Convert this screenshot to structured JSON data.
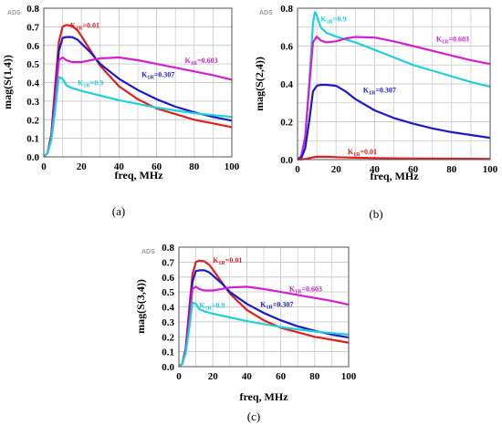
{
  "chart_data": [
    {
      "type": "line",
      "id": "a",
      "caption": "(a)",
      "watermark": "ADS",
      "xlabel": "freq, MHz",
      "ylabel": "mag(S(1,4))",
      "xlim": [
        0,
        100
      ],
      "ylim": [
        0,
        0.8
      ],
      "xticks": [
        0,
        20,
        40,
        60,
        80,
        100
      ],
      "yticks": [
        0.0,
        0.1,
        0.2,
        0.3,
        0.4,
        0.5,
        0.6,
        0.7,
        0.8
      ],
      "ytick_labels": [
        "0.0",
        "0.1",
        "0.2",
        "0.3",
        "0.4",
        "0.5",
        "0.6",
        "0.7",
        "0.8"
      ],
      "grid": true,
      "series": [
        {
          "name": "K1R=0.01",
          "color": "#e02020",
          "label_sub": "1R",
          "label_rest": "=0.01",
          "label_at": [
            14,
            0.695
          ],
          "x": [
            0,
            2,
            4,
            6,
            8,
            10,
            12,
            15,
            18,
            20,
            25,
            30,
            40,
            50,
            60,
            70,
            80,
            90,
            100
          ],
          "y": [
            0,
            0.02,
            0.12,
            0.38,
            0.62,
            0.7,
            0.71,
            0.705,
            0.68,
            0.65,
            0.57,
            0.49,
            0.38,
            0.31,
            0.26,
            0.23,
            0.2,
            0.18,
            0.16
          ]
        },
        {
          "name": "K1R=0.307",
          "color": "#1a1ac8",
          "label_sub": "1R",
          "label_rest": "=0.307",
          "label_at": [
            52,
            0.43
          ],
          "x": [
            0,
            2,
            4,
            6,
            8,
            10,
            12,
            15,
            18,
            20,
            25,
            30,
            40,
            50,
            60,
            70,
            80,
            90,
            100
          ],
          "y": [
            0,
            0.02,
            0.11,
            0.33,
            0.57,
            0.64,
            0.645,
            0.645,
            0.63,
            0.61,
            0.56,
            0.5,
            0.42,
            0.36,
            0.31,
            0.27,
            0.24,
            0.215,
            0.195
          ]
        },
        {
          "name": "K1R=0.603",
          "color": "#d020d0",
          "label_sub": "1R",
          "label_rest": "=0.603",
          "label_at": [
            75,
            0.505
          ],
          "x": [
            0,
            2,
            4,
            6,
            8,
            10,
            12,
            15,
            20,
            25,
            30,
            40,
            50,
            60,
            70,
            80,
            90,
            100
          ],
          "y": [
            0,
            0.02,
            0.1,
            0.3,
            0.52,
            0.535,
            0.52,
            0.51,
            0.51,
            0.52,
            0.53,
            0.535,
            0.52,
            0.5,
            0.48,
            0.46,
            0.44,
            0.415
          ]
        },
        {
          "name": "K1R=0.9",
          "color": "#20d0d8",
          "label_sub": "1R",
          "label_rest": "=0.9",
          "label_at": [
            18,
            0.385
          ],
          "x": [
            0,
            2,
            4,
            6,
            8,
            10,
            12,
            15,
            20,
            30,
            40,
            50,
            60,
            70,
            80,
            90,
            100
          ],
          "y": [
            0,
            0.02,
            0.09,
            0.25,
            0.43,
            0.42,
            0.385,
            0.37,
            0.355,
            0.33,
            0.305,
            0.285,
            0.265,
            0.25,
            0.235,
            0.225,
            0.215
          ]
        }
      ]
    },
    {
      "type": "line",
      "id": "b",
      "caption": "(b)",
      "watermark": "ADS",
      "xlabel": "freq, MHz",
      "ylabel": "mag(S(2,4))",
      "xlim": [
        0,
        100
      ],
      "ylim": [
        0,
        0.8
      ],
      "xticks": [
        0,
        20,
        40,
        60,
        80,
        100
      ],
      "yticks": [
        0.0,
        0.2,
        0.4,
        0.6,
        0.8
      ],
      "ytick_labels": [
        "0.0",
        "0.2",
        "0.4",
        "0.6",
        "0.8"
      ],
      "grid": true,
      "series": [
        {
          "name": "K1R=0.9",
          "color": "#20d0d8",
          "label_sub": "1R",
          "label_rest": "=0.9",
          "label_at": [
            12,
            0.73
          ],
          "x": [
            0,
            2,
            4,
            6,
            8,
            9,
            10,
            12,
            15,
            20,
            30,
            40,
            50,
            60,
            70,
            80,
            90,
            100
          ],
          "y": [
            0,
            0.02,
            0.12,
            0.4,
            0.72,
            0.78,
            0.76,
            0.7,
            0.67,
            0.65,
            0.62,
            0.58,
            0.54,
            0.5,
            0.47,
            0.44,
            0.41,
            0.385
          ]
        },
        {
          "name": "K1R=0.603",
          "color": "#d020d0",
          "label_sub": "1R",
          "label_rest": "=0.603",
          "label_at": [
            72,
            0.625
          ],
          "x": [
            0,
            2,
            4,
            6,
            8,
            10,
            12,
            15,
            20,
            25,
            30,
            40,
            50,
            60,
            70,
            80,
            90,
            100
          ],
          "y": [
            0,
            0.02,
            0.12,
            0.38,
            0.62,
            0.65,
            0.63,
            0.62,
            0.625,
            0.64,
            0.648,
            0.645,
            0.625,
            0.6,
            0.575,
            0.55,
            0.525,
            0.505
          ]
        },
        {
          "name": "K1R=0.307",
          "color": "#1a1ac8",
          "label_sub": "1R",
          "label_rest": "=0.307",
          "label_at": [
            34,
            0.355
          ],
          "x": [
            0,
            2,
            4,
            6,
            8,
            10,
            12,
            15,
            20,
            25,
            30,
            40,
            50,
            60,
            70,
            80,
            90,
            100
          ],
          "y": [
            0,
            0.01,
            0.06,
            0.2,
            0.36,
            0.39,
            0.395,
            0.395,
            0.39,
            0.36,
            0.32,
            0.26,
            0.22,
            0.19,
            0.165,
            0.145,
            0.13,
            0.115
          ]
        },
        {
          "name": "K1R=0.01",
          "color": "#e02020",
          "label_sub": "1R",
          "label_rest": "=0.01",
          "label_at": [
            26,
            0.03
          ],
          "x": [
            0,
            4,
            8,
            10,
            15,
            20,
            30,
            40,
            60,
            80,
            100
          ],
          "y": [
            0,
            0.003,
            0.012,
            0.015,
            0.015,
            0.013,
            0.01,
            0.008,
            0.006,
            0.005,
            0.004
          ]
        }
      ]
    },
    {
      "type": "line",
      "id": "c",
      "caption": "(c)",
      "watermark": "ADS",
      "xlabel": "freq, MHz",
      "ylabel": "mag(S(3,4))",
      "xlim": [
        0,
        100
      ],
      "ylim": [
        0,
        0.8
      ],
      "xticks": [
        0,
        20,
        40,
        60,
        80,
        100
      ],
      "yticks": [
        0.0,
        0.1,
        0.2,
        0.3,
        0.4,
        0.5,
        0.6,
        0.7,
        0.8
      ],
      "ytick_labels": [
        "0.0",
        "0.1",
        "0.2",
        "0.3",
        "0.4",
        "0.5",
        "0.6",
        "0.7",
        "0.8"
      ],
      "grid": true,
      "series": [
        {
          "name": "K1R=0.01",
          "color": "#e02020",
          "label_sub": "1R",
          "label_rest": "=0.01",
          "label_at": [
            20,
            0.695
          ],
          "x": [
            0,
            2,
            4,
            6,
            8,
            10,
            12,
            15,
            18,
            20,
            25,
            30,
            40,
            50,
            60,
            70,
            80,
            90,
            100
          ],
          "y": [
            0,
            0.02,
            0.12,
            0.38,
            0.62,
            0.7,
            0.71,
            0.705,
            0.68,
            0.65,
            0.57,
            0.49,
            0.38,
            0.31,
            0.26,
            0.23,
            0.2,
            0.18,
            0.16
          ]
        },
        {
          "name": "K1R=0.307",
          "color": "#1a1ac8",
          "label_sub": "1R",
          "label_rest": "=0.307",
          "label_at": [
            48,
            0.4
          ],
          "x": [
            0,
            2,
            4,
            6,
            8,
            10,
            12,
            15,
            18,
            20,
            25,
            30,
            40,
            50,
            60,
            70,
            80,
            90,
            100
          ],
          "y": [
            0,
            0.02,
            0.11,
            0.33,
            0.57,
            0.64,
            0.645,
            0.645,
            0.63,
            0.61,
            0.56,
            0.5,
            0.42,
            0.36,
            0.31,
            0.27,
            0.24,
            0.215,
            0.195
          ]
        },
        {
          "name": "K1R=0.603",
          "color": "#d020d0",
          "label_sub": "1R",
          "label_rest": "=0.603",
          "label_at": [
            65,
            0.505
          ],
          "x": [
            0,
            2,
            4,
            6,
            8,
            10,
            12,
            15,
            20,
            25,
            30,
            40,
            50,
            60,
            70,
            80,
            90,
            100
          ],
          "y": [
            0,
            0.02,
            0.1,
            0.3,
            0.52,
            0.535,
            0.52,
            0.51,
            0.51,
            0.52,
            0.53,
            0.535,
            0.52,
            0.5,
            0.48,
            0.46,
            0.44,
            0.415
          ]
        },
        {
          "name": "K1R=0.9",
          "color": "#20d0d8",
          "label_sub": "1R",
          "label_rest": "=0.9",
          "label_at": [
            12,
            0.395
          ],
          "x": [
            0,
            2,
            4,
            6,
            8,
            10,
            12,
            15,
            20,
            30,
            40,
            50,
            60,
            70,
            80,
            90,
            100
          ],
          "y": [
            0,
            0.02,
            0.09,
            0.25,
            0.43,
            0.42,
            0.385,
            0.37,
            0.355,
            0.33,
            0.305,
            0.285,
            0.265,
            0.25,
            0.235,
            0.225,
            0.215
          ]
        }
      ]
    }
  ]
}
